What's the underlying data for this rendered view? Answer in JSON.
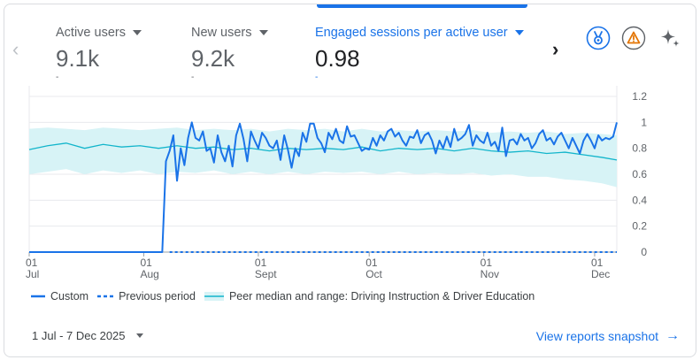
{
  "metrics": [
    {
      "label": "Active users",
      "value": "9.1k",
      "dash": "-",
      "active": false
    },
    {
      "label": "New users",
      "value": "9.2k",
      "dash": "-",
      "active": false
    },
    {
      "label": "Engaged sessions per active user",
      "value": "0.98",
      "dash": "-",
      "active": true
    }
  ],
  "icons": {
    "prev": "chevron-left-icon",
    "next": "chevron-right-icon",
    "benchmark": "medal-icon",
    "warning": "warning-icon",
    "insights": "sparkle-icon"
  },
  "colors": {
    "accent": "#1a73e8",
    "custom_line": "#1a73e8",
    "peer_line": "#12b5cb",
    "peer_band": "#d7f3f6",
    "warning": "#e37400"
  },
  "chart_data": {
    "type": "line",
    "x_axis": {
      "start": "2025-07-01",
      "end": "2025-12-07",
      "ticks": [
        {
          "date": "2025-07-01",
          "day": "01",
          "month": "Jul"
        },
        {
          "date": "2025-08-01",
          "day": "01",
          "month": "Aug"
        },
        {
          "date": "2025-09-01",
          "day": "01",
          "month": "Sept"
        },
        {
          "date": "2025-10-01",
          "day": "01",
          "month": "Oct"
        },
        {
          "date": "2025-11-01",
          "day": "01",
          "month": "Nov"
        },
        {
          "date": "2025-12-01",
          "day": "01",
          "month": "Dec"
        }
      ]
    },
    "y_axis": {
      "min": 0,
      "max": 1.2,
      "ticks": [
        "0",
        "0.2",
        "0.4",
        "0.6",
        "0.8",
        "1",
        "1.2"
      ],
      "position": "right"
    },
    "grid": true,
    "legend_position": "bottom",
    "series": [
      {
        "name": "Custom",
        "style": "solid",
        "points": [
          [
            "2025-07-01",
            0
          ],
          [
            "2025-08-06",
            0
          ],
          [
            "2025-08-07",
            0.7
          ],
          [
            "2025-08-08",
            0.78
          ],
          [
            "2025-08-09",
            0.9
          ],
          [
            "2025-08-10",
            0.55
          ],
          [
            "2025-08-11",
            0.8
          ],
          [
            "2025-08-12",
            0.67
          ],
          [
            "2025-08-13",
            0.88
          ],
          [
            "2025-08-14",
            1.0
          ],
          [
            "2025-08-15",
            0.88
          ],
          [
            "2025-08-16",
            0.86
          ],
          [
            "2025-08-17",
            0.93
          ],
          [
            "2025-08-18",
            0.78
          ],
          [
            "2025-08-19",
            0.8
          ],
          [
            "2025-08-20",
            0.69
          ],
          [
            "2025-08-21",
            0.9
          ],
          [
            "2025-08-22",
            0.77
          ],
          [
            "2025-08-23",
            0.7
          ],
          [
            "2025-08-24",
            0.82
          ],
          [
            "2025-08-25",
            0.66
          ],
          [
            "2025-08-26",
            0.9
          ],
          [
            "2025-08-27",
            0.99
          ],
          [
            "2025-08-28",
            0.87
          ],
          [
            "2025-08-29",
            0.7
          ],
          [
            "2025-08-30",
            0.93
          ],
          [
            "2025-08-31",
            0.86
          ],
          [
            "2025-09-01",
            0.8
          ],
          [
            "2025-09-02",
            0.92
          ],
          [
            "2025-09-03",
            0.88
          ],
          [
            "2025-09-04",
            0.82
          ],
          [
            "2025-09-05",
            0.8
          ],
          [
            "2025-09-06",
            0.86
          ],
          [
            "2025-09-07",
            0.71
          ],
          [
            "2025-09-08",
            0.9
          ],
          [
            "2025-09-09",
            0.79
          ],
          [
            "2025-09-10",
            0.65
          ],
          [
            "2025-09-11",
            0.8
          ],
          [
            "2025-09-12",
            0.74
          ],
          [
            "2025-09-13",
            0.92
          ],
          [
            "2025-09-14",
            0.85
          ],
          [
            "2025-09-15",
            0.99
          ],
          [
            "2025-09-16",
            0.99
          ],
          [
            "2025-09-17",
            0.88
          ],
          [
            "2025-09-18",
            0.84
          ],
          [
            "2025-09-19",
            0.77
          ],
          [
            "2025-09-20",
            0.92
          ],
          [
            "2025-09-21",
            0.87
          ],
          [
            "2025-09-22",
            0.95
          ],
          [
            "2025-09-23",
            0.86
          ],
          [
            "2025-09-24",
            0.84
          ],
          [
            "2025-09-25",
            0.97
          ],
          [
            "2025-09-26",
            0.89
          ],
          [
            "2025-09-27",
            0.9
          ],
          [
            "2025-09-28",
            0.84
          ],
          [
            "2025-09-29",
            0.78
          ],
          [
            "2025-09-30",
            0.8
          ],
          [
            "2025-10-01",
            0.79
          ],
          [
            "2025-10-02",
            0.88
          ],
          [
            "2025-10-03",
            0.82
          ],
          [
            "2025-10-04",
            0.9
          ],
          [
            "2025-10-05",
            0.86
          ],
          [
            "2025-10-06",
            0.93
          ],
          [
            "2025-10-07",
            0.95
          ],
          [
            "2025-10-08",
            0.89
          ],
          [
            "2025-10-09",
            0.92
          ],
          [
            "2025-10-10",
            0.86
          ],
          [
            "2025-10-11",
            0.82
          ],
          [
            "2025-10-12",
            0.89
          ],
          [
            "2025-10-13",
            0.88
          ],
          [
            "2025-10-14",
            0.94
          ],
          [
            "2025-10-15",
            0.84
          ],
          [
            "2025-10-16",
            0.9
          ],
          [
            "2025-10-17",
            0.92
          ],
          [
            "2025-10-18",
            0.86
          ],
          [
            "2025-10-19",
            0.76
          ],
          [
            "2025-10-20",
            0.86
          ],
          [
            "2025-10-21",
            0.8
          ],
          [
            "2025-10-22",
            0.89
          ],
          [
            "2025-10-23",
            0.81
          ],
          [
            "2025-10-24",
            0.95
          ],
          [
            "2025-10-25",
            0.86
          ],
          [
            "2025-10-26",
            0.88
          ],
          [
            "2025-10-27",
            0.91
          ],
          [
            "2025-10-28",
            0.98
          ],
          [
            "2025-10-29",
            0.82
          ],
          [
            "2025-10-30",
            0.9
          ],
          [
            "2025-10-31",
            0.86
          ],
          [
            "2025-11-01",
            0.84
          ],
          [
            "2025-11-02",
            0.92
          ],
          [
            "2025-11-03",
            0.82
          ],
          [
            "2025-11-04",
            0.85
          ],
          [
            "2025-11-05",
            0.78
          ],
          [
            "2025-11-06",
            0.96
          ],
          [
            "2025-11-07",
            0.74
          ],
          [
            "2025-11-08",
            0.86
          ],
          [
            "2025-11-09",
            0.87
          ],
          [
            "2025-11-10",
            0.83
          ],
          [
            "2025-11-11",
            0.91
          ],
          [
            "2025-11-12",
            0.86
          ],
          [
            "2025-11-13",
            0.88
          ],
          [
            "2025-11-14",
            0.8
          ],
          [
            "2025-11-15",
            0.84
          ],
          [
            "2025-11-16",
            0.91
          ],
          [
            "2025-11-17",
            0.94
          ],
          [
            "2025-11-18",
            0.86
          ],
          [
            "2025-11-19",
            0.88
          ],
          [
            "2025-11-20",
            0.83
          ],
          [
            "2025-11-21",
            0.89
          ],
          [
            "2025-11-22",
            0.92
          ],
          [
            "2025-11-23",
            0.86
          ],
          [
            "2025-11-24",
            0.8
          ],
          [
            "2025-11-25",
            0.88
          ],
          [
            "2025-11-26",
            0.82
          ],
          [
            "2025-11-27",
            0.76
          ],
          [
            "2025-11-28",
            0.86
          ],
          [
            "2025-11-29",
            0.91
          ],
          [
            "2025-11-30",
            0.86
          ],
          [
            "2025-12-01",
            0.8
          ],
          [
            "2025-12-02",
            0.9
          ],
          [
            "2025-12-03",
            0.86
          ],
          [
            "2025-12-04",
            0.88
          ],
          [
            "2025-12-05",
            0.87
          ],
          [
            "2025-12-06",
            0.89
          ],
          [
            "2025-12-07",
            1.0
          ]
        ]
      },
      {
        "name": "Previous period",
        "style": "dashed",
        "points": [
          [
            "2025-08-08",
            0
          ],
          [
            "2025-12-07",
            0
          ]
        ]
      },
      {
        "name": "Peer median and range: Driving Instruction & Driver Education",
        "style": "band",
        "points": [
          [
            "2025-07-01",
            0.79
          ],
          [
            "2025-07-06",
            0.82
          ],
          [
            "2025-07-11",
            0.84
          ],
          [
            "2025-07-16",
            0.8
          ],
          [
            "2025-07-21",
            0.83
          ],
          [
            "2025-07-26",
            0.81
          ],
          [
            "2025-07-31",
            0.82
          ],
          [
            "2025-08-05",
            0.8
          ],
          [
            "2025-08-10",
            0.82
          ],
          [
            "2025-08-15",
            0.8
          ],
          [
            "2025-08-20",
            0.81
          ],
          [
            "2025-08-25",
            0.79
          ],
          [
            "2025-08-30",
            0.8
          ],
          [
            "2025-09-04",
            0.78
          ],
          [
            "2025-09-09",
            0.8
          ],
          [
            "2025-09-14",
            0.79
          ],
          [
            "2025-09-19",
            0.8
          ],
          [
            "2025-09-24",
            0.79
          ],
          [
            "2025-09-29",
            0.81
          ],
          [
            "2025-10-04",
            0.78
          ],
          [
            "2025-10-09",
            0.8
          ],
          [
            "2025-10-14",
            0.79
          ],
          [
            "2025-10-19",
            0.8
          ],
          [
            "2025-10-24",
            0.78
          ],
          [
            "2025-10-29",
            0.8
          ],
          [
            "2025-11-03",
            0.78
          ],
          [
            "2025-11-08",
            0.77
          ],
          [
            "2025-11-13",
            0.78
          ],
          [
            "2025-11-18",
            0.76
          ],
          [
            "2025-11-23",
            0.77
          ],
          [
            "2025-11-28",
            0.75
          ],
          [
            "2025-12-03",
            0.73
          ],
          [
            "2025-12-07",
            0.71
          ]
        ],
        "upper": [
          [
            "2025-07-01",
            0.95
          ],
          [
            "2025-07-06",
            0.96
          ],
          [
            "2025-07-11",
            0.95
          ],
          [
            "2025-07-16",
            0.94
          ],
          [
            "2025-07-21",
            0.96
          ],
          [
            "2025-07-26",
            0.95
          ],
          [
            "2025-07-31",
            0.94
          ],
          [
            "2025-08-05",
            0.95
          ],
          [
            "2025-08-10",
            0.96
          ],
          [
            "2025-08-15",
            0.94
          ],
          [
            "2025-08-20",
            0.95
          ],
          [
            "2025-08-25",
            0.94
          ],
          [
            "2025-08-30",
            0.95
          ],
          [
            "2025-09-04",
            0.93
          ],
          [
            "2025-09-09",
            0.95
          ],
          [
            "2025-09-14",
            0.94
          ],
          [
            "2025-09-19",
            0.95
          ],
          [
            "2025-09-24",
            0.93
          ],
          [
            "2025-09-29",
            0.95
          ],
          [
            "2025-10-04",
            0.93
          ],
          [
            "2025-10-09",
            0.94
          ],
          [
            "2025-10-14",
            0.93
          ],
          [
            "2025-10-19",
            0.94
          ],
          [
            "2025-10-24",
            0.93
          ],
          [
            "2025-10-29",
            0.94
          ],
          [
            "2025-11-03",
            0.92
          ],
          [
            "2025-11-08",
            0.93
          ],
          [
            "2025-11-13",
            0.92
          ],
          [
            "2025-11-18",
            0.93
          ],
          [
            "2025-11-23",
            0.91
          ],
          [
            "2025-11-28",
            0.92
          ],
          [
            "2025-12-03",
            0.91
          ],
          [
            "2025-12-07",
            0.9
          ]
        ],
        "lower": [
          [
            "2025-07-01",
            0.6
          ],
          [
            "2025-07-06",
            0.62
          ],
          [
            "2025-07-11",
            0.64
          ],
          [
            "2025-07-16",
            0.6
          ],
          [
            "2025-07-21",
            0.63
          ],
          [
            "2025-07-26",
            0.61
          ],
          [
            "2025-07-31",
            0.63
          ],
          [
            "2025-08-05",
            0.6
          ],
          [
            "2025-08-10",
            0.62
          ],
          [
            "2025-08-15",
            0.61
          ],
          [
            "2025-08-20",
            0.63
          ],
          [
            "2025-08-25",
            0.6
          ],
          [
            "2025-08-30",
            0.62
          ],
          [
            "2025-09-04",
            0.6
          ],
          [
            "2025-09-09",
            0.62
          ],
          [
            "2025-09-14",
            0.6
          ],
          [
            "2025-09-19",
            0.62
          ],
          [
            "2025-09-24",
            0.61
          ],
          [
            "2025-09-29",
            0.62
          ],
          [
            "2025-10-04",
            0.6
          ],
          [
            "2025-10-09",
            0.62
          ],
          [
            "2025-10-14",
            0.6
          ],
          [
            "2025-10-19",
            0.61
          ],
          [
            "2025-10-24",
            0.6
          ],
          [
            "2025-10-29",
            0.61
          ],
          [
            "2025-11-03",
            0.59
          ],
          [
            "2025-11-08",
            0.6
          ],
          [
            "2025-11-13",
            0.58
          ],
          [
            "2025-11-18",
            0.58
          ],
          [
            "2025-11-23",
            0.56
          ],
          [
            "2025-11-28",
            0.55
          ],
          [
            "2025-12-03",
            0.53
          ],
          [
            "2025-12-07",
            0.5
          ]
        ]
      }
    ]
  },
  "footer": {
    "date_range": "1 Jul - 7 Dec 2025",
    "snapshot_link": "View reports snapshot"
  }
}
